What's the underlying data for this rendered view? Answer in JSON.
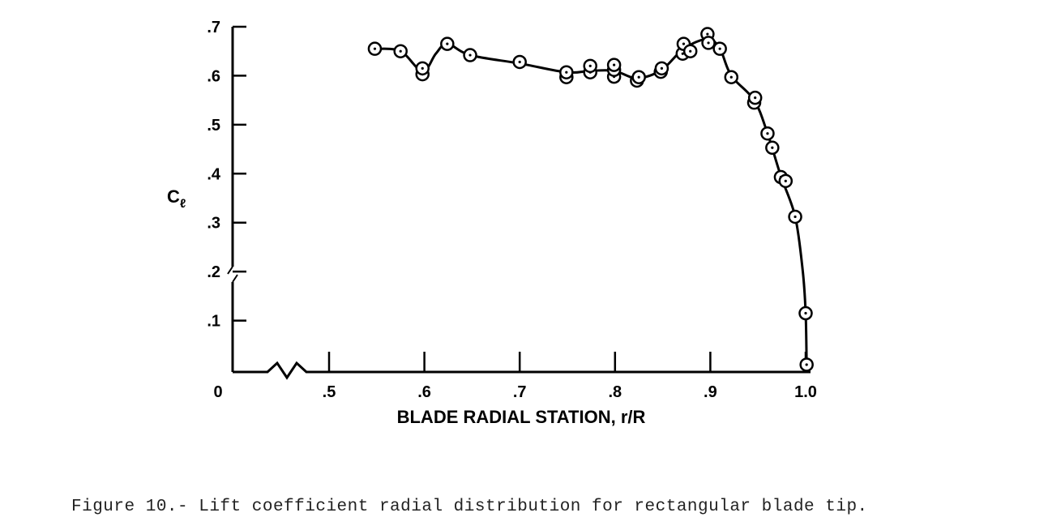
{
  "chart_data": {
    "type": "line",
    "markers": "circle-with-center-dot",
    "xlabel": "BLADE RADIAL STATION, r/R",
    "ylabel_main": "C",
    "ylabel_sub": "ℓ",
    "xlim": [
      0,
      1.0
    ],
    "x_axis_break": "between 0 and .5 (zigzag)",
    "ylim": [
      0,
      0.7
    ],
    "y_axis_break": "between .1 and .2",
    "grid": false,
    "x_ticks": [
      {
        "value": 0,
        "label": "0"
      },
      {
        "value": 0.5,
        "label": ".5"
      },
      {
        "value": 0.6,
        "label": ".6"
      },
      {
        "value": 0.7,
        "label": ".7"
      },
      {
        "value": 0.8,
        "label": ".8"
      },
      {
        "value": 0.9,
        "label": ".9"
      },
      {
        "value": 1.0,
        "label": "1.0"
      }
    ],
    "y_ticks": [
      {
        "value": 0.1,
        "label": ".1"
      },
      {
        "value": 0.2,
        "label": ".2"
      },
      {
        "value": 0.3,
        "label": ".3"
      },
      {
        "value": 0.4,
        "label": ".4"
      },
      {
        "value": 0.5,
        "label": ".5"
      },
      {
        "value": 0.6,
        "label": ".6"
      },
      {
        "value": 0.7,
        "label": ".7"
      }
    ],
    "points": [
      {
        "x": 0.548,
        "y": 0.655
      },
      {
        "x": 0.575,
        "y": 0.65
      },
      {
        "x": 0.598,
        "y": 0.603
      },
      {
        "x": 0.598,
        "y": 0.615
      },
      {
        "x": 0.624,
        "y": 0.665
      },
      {
        "x": 0.648,
        "y": 0.642
      },
      {
        "x": 0.7,
        "y": 0.628
      },
      {
        "x": 0.749,
        "y": 0.597
      },
      {
        "x": 0.749,
        "y": 0.607
      },
      {
        "x": 0.774,
        "y": 0.607
      },
      {
        "x": 0.774,
        "y": 0.62
      },
      {
        "x": 0.799,
        "y": 0.598
      },
      {
        "x": 0.799,
        "y": 0.612
      },
      {
        "x": 0.799,
        "y": 0.622
      },
      {
        "x": 0.823,
        "y": 0.59
      },
      {
        "x": 0.825,
        "y": 0.597
      },
      {
        "x": 0.848,
        "y": 0.608
      },
      {
        "x": 0.849,
        "y": 0.615
      },
      {
        "x": 0.871,
        "y": 0.645
      },
      {
        "x": 0.872,
        "y": 0.665
      },
      {
        "x": 0.879,
        "y": 0.65
      },
      {
        "x": 0.897,
        "y": 0.685
      },
      {
        "x": 0.898,
        "y": 0.667
      },
      {
        "x": 0.91,
        "y": 0.655
      },
      {
        "x": 0.922,
        "y": 0.597
      },
      {
        "x": 0.946,
        "y": 0.545
      },
      {
        "x": 0.947,
        "y": 0.555
      },
      {
        "x": 0.96,
        "y": 0.482
      },
      {
        "x": 0.965,
        "y": 0.453
      },
      {
        "x": 0.974,
        "y": 0.393
      },
      {
        "x": 0.979,
        "y": 0.385
      },
      {
        "x": 0.989,
        "y": 0.312
      },
      {
        "x": 1.0,
        "y": 0.115
      },
      {
        "x": 1.001,
        "y": 0.01
      }
    ],
    "curve": [
      [
        0.548,
        0.655
      ],
      [
        0.575,
        0.65
      ],
      [
        0.598,
        0.609
      ],
      [
        0.612,
        0.645
      ],
      [
        0.624,
        0.665
      ],
      [
        0.648,
        0.642
      ],
      [
        0.7,
        0.625
      ],
      [
        0.749,
        0.607
      ],
      [
        0.774,
        0.61
      ],
      [
        0.799,
        0.61
      ],
      [
        0.823,
        0.595
      ],
      [
        0.849,
        0.612
      ],
      [
        0.872,
        0.655
      ],
      [
        0.897,
        0.675
      ],
      [
        0.91,
        0.655
      ],
      [
        0.922,
        0.6
      ],
      [
        0.946,
        0.55
      ],
      [
        0.96,
        0.482
      ],
      [
        0.974,
        0.395
      ],
      [
        0.989,
        0.312
      ],
      [
        0.997,
        0.2
      ],
      [
        1.0,
        0.115
      ],
      [
        1.001,
        0.01
      ]
    ]
  },
  "caption": "Figure 10.- Lift coefficient radial distribution for rectangular blade tip."
}
